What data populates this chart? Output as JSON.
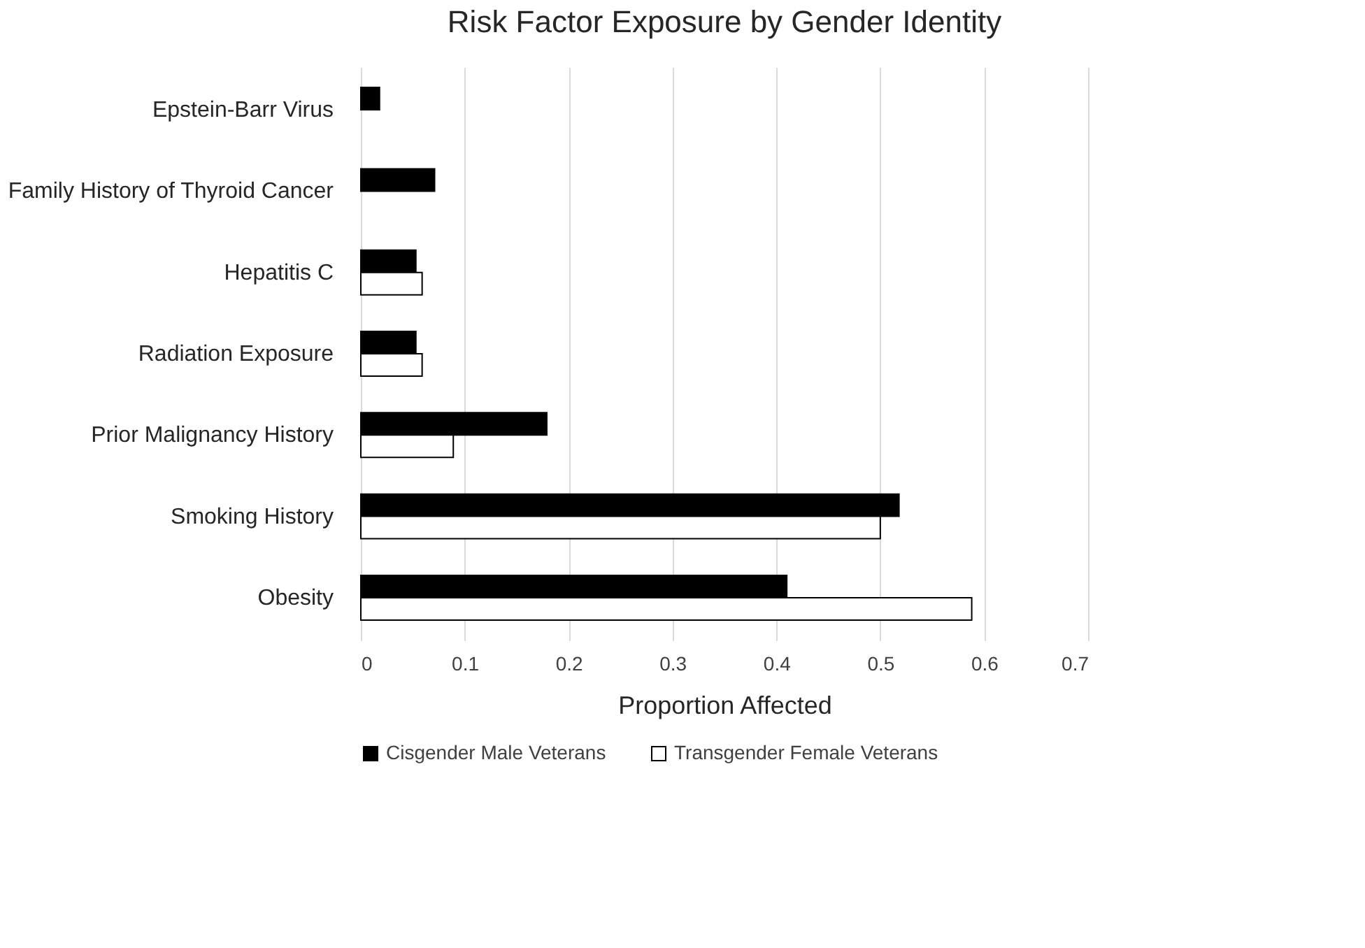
{
  "chart_data": {
    "type": "bar",
    "orientation": "horizontal",
    "title": "Risk Factor Exposure by Gender Identity",
    "xlabel": "Proportion Affected",
    "categories": [
      "Epstein-Barr Virus",
      "Family History of Thyroid Cancer",
      "Hepatitis C",
      "Radiation Exposure",
      "Prior Malignancy History",
      "Smoking History",
      "Obesity"
    ],
    "series": [
      {
        "name": "Cisgender Male Veterans",
        "color": "#000000",
        "values": [
          0.018,
          0.071,
          0.053,
          0.053,
          0.179,
          0.518,
          0.41
        ]
      },
      {
        "name": "Transgender Female Veterans",
        "color": "#ffffff",
        "values": [
          null,
          null,
          0.059,
          0.059,
          0.089,
          0.5,
          0.588
        ]
      }
    ],
    "xlim": [
      0,
      0.7
    ],
    "xticks": [
      0,
      0.1,
      0.2,
      0.3,
      0.4,
      0.5,
      0.6,
      0.7
    ],
    "grid": "x",
    "legend": "bottom"
  }
}
